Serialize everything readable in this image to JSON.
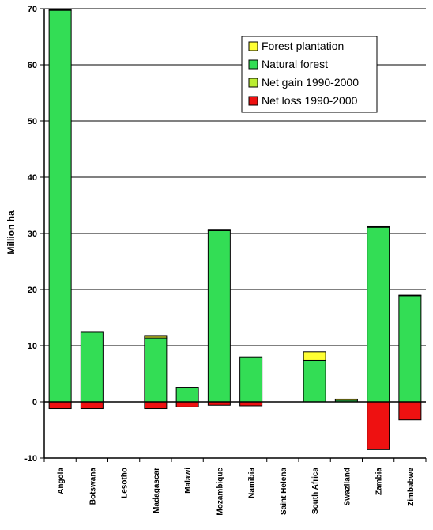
{
  "chart_data": {
    "type": "bar",
    "stacked": true,
    "ylabel": "Million ha",
    "ylim": [
      -10,
      70
    ],
    "yticks": [
      -10,
      0,
      10,
      20,
      30,
      40,
      50,
      60,
      70
    ],
    "grid": true,
    "legend_position": "top-right",
    "categories": [
      "Angola",
      "Botswana",
      "Lesotho",
      "Madagascar",
      "Malawi",
      "Mozambique",
      "Namibia",
      "Saint Helena",
      "South Africa",
      "Swaziland",
      "Zambia",
      "Zimbabwe"
    ],
    "series": [
      {
        "name": "Forest plantation",
        "color": "#ffff33",
        "values": [
          0.1,
          0,
          0,
          0.3,
          0.1,
          0.1,
          0,
          0,
          1.5,
          0.2,
          0.1,
          0.1
        ]
      },
      {
        "name": "Natural forest",
        "color": "#33dd55",
        "values": [
          69.7,
          12.4,
          0,
          11.4,
          2.5,
          30.5,
          8.0,
          0,
          7.4,
          0.3,
          31.1,
          18.9
        ]
      },
      {
        "name": "Net gain 1990-2000",
        "color": "#bbee33",
        "values": [
          0,
          0,
          0,
          0,
          0,
          0,
          0,
          0,
          0,
          0,
          0,
          0
        ]
      },
      {
        "name": "Net loss 1990-2000",
        "color": "#ee1111",
        "values": [
          -1.2,
          -1.2,
          0,
          -1.2,
          -0.9,
          -0.6,
          -0.7,
          0,
          0,
          0,
          -8.5,
          -3.2
        ]
      }
    ]
  }
}
